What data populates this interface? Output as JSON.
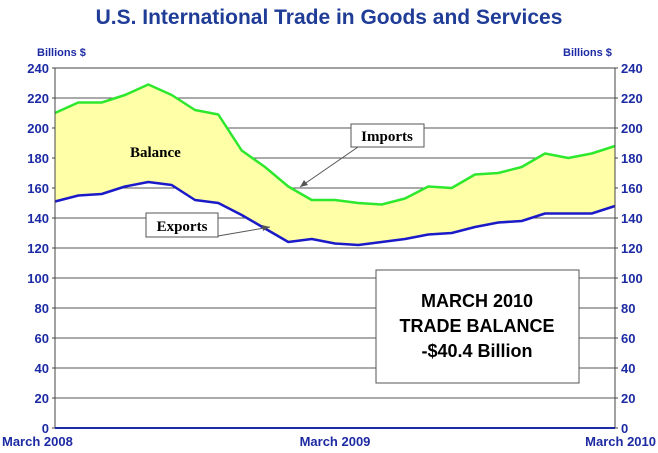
{
  "chart_data": {
    "type": "area",
    "title": "U.S. International Trade in Goods and Services",
    "ylabel_left": "Billions $",
    "ylabel_right": "Billions $",
    "ylim": [
      0,
      240
    ],
    "yticks": [
      0,
      20,
      40,
      60,
      80,
      100,
      120,
      140,
      160,
      180,
      200,
      220,
      240
    ],
    "x": [
      "2008-03",
      "2008-04",
      "2008-05",
      "2008-06",
      "2008-07",
      "2008-08",
      "2008-09",
      "2008-10",
      "2008-11",
      "2008-12",
      "2009-01",
      "2009-02",
      "2009-03",
      "2009-04",
      "2009-05",
      "2009-06",
      "2009-07",
      "2009-08",
      "2009-09",
      "2009-10",
      "2009-11",
      "2009-12",
      "2010-01",
      "2010-02",
      "2010-03"
    ],
    "xtick_labels": [
      {
        "x": "2008-03",
        "label": "March 2008"
      },
      {
        "x": "2009-03",
        "label": "March 2009"
      },
      {
        "x": "2010-03",
        "label": "March 2010"
      }
    ],
    "series": [
      {
        "name": "Imports",
        "color": "#2ee82e",
        "values": [
          210,
          217,
          217,
          222,
          229,
          222,
          212,
          209,
          185,
          174,
          161,
          152,
          152,
          150,
          149,
          153,
          161,
          160,
          169,
          170,
          174,
          183,
          180,
          183,
          188
        ]
      },
      {
        "name": "Exports",
        "color": "#1a1ac8",
        "values": [
          151,
          155,
          156,
          161,
          164,
          162,
          152,
          150,
          142,
          133,
          124,
          126,
          123,
          122,
          124,
          126,
          129,
          130,
          134,
          137,
          138,
          143,
          143,
          143,
          148
        ]
      }
    ],
    "fill_label": "Balance",
    "fill_color": "#ffffa8",
    "annotations": {
      "imports": "Imports",
      "exports": "Exports",
      "balance": "Balance"
    },
    "grid": true,
    "callout": [
      "MARCH 2010",
      "TRADE BALANCE",
      "-$40.4 Billion"
    ]
  }
}
